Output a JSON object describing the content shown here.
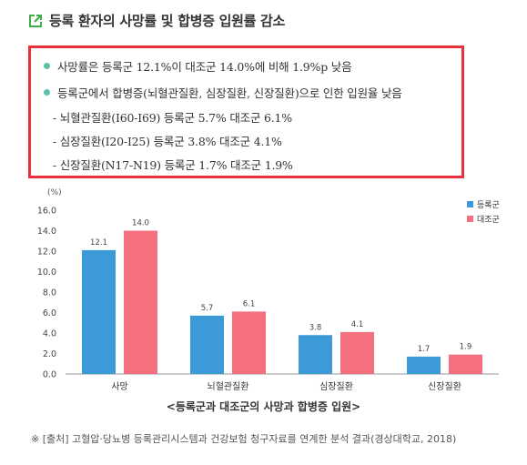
{
  "header": {
    "title": "등록 환자의 사망률 및 합병증 입원률 감소"
  },
  "summary": {
    "line1": "사망률은 등록군 12.1%이 대조군 14.0%에 비해 1.9%p 낮음",
    "line2": "등록군에서 합병증(뇌혈관질환, 심장질환, 신장질환)으로 인한 입원율 낮음",
    "sub1": "- 뇌혈관질환(I60-I69) 등록군 5.7% 대조군 6.1%",
    "sub2": "- 심장질환(I20-I25) 등록군 3.8% 대조군 4.1%",
    "sub3": "- 신장질환(N17-N19) 등록군 1.7% 대조군 1.9%"
  },
  "colors": {
    "registered": "#3d9ad8",
    "control": "#f4707f",
    "accent_box": "#e8323b",
    "bullet": "#5fbfa8",
    "title_icon": "#3fae49"
  },
  "chart_data": {
    "type": "bar",
    "y_unit_label": "(%)",
    "categories": [
      "사망",
      "뇌혈관질환",
      "심장질환",
      "신장질환"
    ],
    "series": [
      {
        "name": "등록군",
        "values": [
          12.1,
          5.7,
          3.8,
          1.7
        ]
      },
      {
        "name": "대조군",
        "values": [
          14.0,
          6.1,
          4.1,
          1.9
        ]
      }
    ],
    "value_labels": [
      [
        "12.1",
        "5.7",
        "3.8",
        "1.7"
      ],
      [
        "14.0",
        "6.1",
        "4.1",
        "1.9"
      ]
    ],
    "ylim": [
      0,
      16
    ],
    "yticks": [
      "0.0",
      "2.0",
      "4.0",
      "6.0",
      "8.0",
      "10.0",
      "12.0",
      "14.0",
      "16.0"
    ],
    "legend": "top-right",
    "caption": "<등록군과 대조군의 사망과 합병증 입원>"
  },
  "footer": {
    "source": "※ [출처] 고혈압·당뇨병 등록관리시스템과 건강보험 청구자료를 연계한 분석 결과(경상대학교, 2018)"
  }
}
